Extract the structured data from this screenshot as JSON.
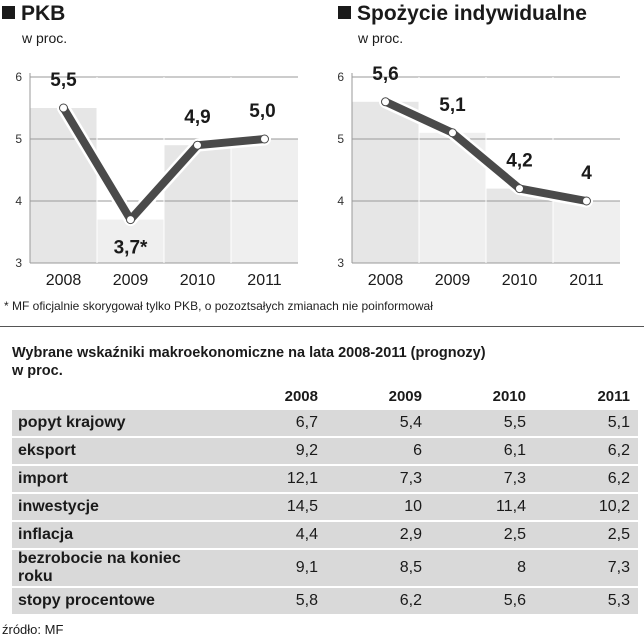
{
  "chart_data": [
    {
      "type": "line",
      "title": "PKB",
      "ylabel": "w proc.",
      "categories": [
        "2008",
        "2009",
        "2010",
        "2011"
      ],
      "values": [
        5.5,
        3.7,
        4.9,
        5.0
      ],
      "data_labels": [
        "5,5",
        "3,7*",
        "4,9",
        "5,0"
      ],
      "yticks": [
        "3",
        "4",
        "5",
        "6"
      ],
      "ylim": [
        3,
        6
      ],
      "grid": true
    },
    {
      "type": "line",
      "title": "Spożycie indywidualne",
      "ylabel": "w proc.",
      "categories": [
        "2008",
        "2009",
        "2010",
        "2011"
      ],
      "values": [
        5.6,
        5.1,
        4.2,
        4.0
      ],
      "data_labels": [
        "5,6",
        "5,1",
        "4,2",
        "4"
      ],
      "yticks": [
        "3",
        "4",
        "5",
        "6"
      ],
      "ylim": [
        3,
        6
      ],
      "grid": true
    }
  ],
  "footnote": "* MF oficjalnie skorygował tylko PKB, o pozoztsałych zmianach nie poinformował",
  "table": {
    "title_line1": "Wybrane wskaźniki makroekonomiczne na lata 2008-2011 (prognozy)",
    "title_line2": "w proc.",
    "columns": [
      "2008",
      "2009",
      "2010",
      "2011"
    ],
    "rows": [
      {
        "label": "popyt krajowy",
        "values": [
          "6,7",
          "5,4",
          "5,5",
          "5,1"
        ]
      },
      {
        "label": "eksport",
        "values": [
          "9,2",
          "6",
          "6,1",
          "6,2"
        ]
      },
      {
        "label": "import",
        "values": [
          "12,1",
          "7,3",
          "7,3",
          "6,2"
        ]
      },
      {
        "label": "inwestycje",
        "values": [
          "14,5",
          "10",
          "11,4",
          "10,2"
        ]
      },
      {
        "label": "inflacja",
        "values": [
          "4,4",
          "2,9",
          "2,5",
          "2,5"
        ]
      },
      {
        "label": "bezrobocie na koniec roku",
        "values": [
          "9,1",
          "8,5",
          "8",
          "7,3"
        ]
      },
      {
        "label": "stopy procentowe",
        "values": [
          "5,8",
          "6,2",
          "5,6",
          "5,3"
        ]
      }
    ]
  },
  "source": "źródło: MF",
  "colors": {
    "line": "#4a4a4a",
    "line_outline": "#ffffff",
    "marker": "#ffffff",
    "bar_fill": "#e6e6e6",
    "row_fill": "#d9d9d9",
    "axis": "#9a9a9a"
  }
}
